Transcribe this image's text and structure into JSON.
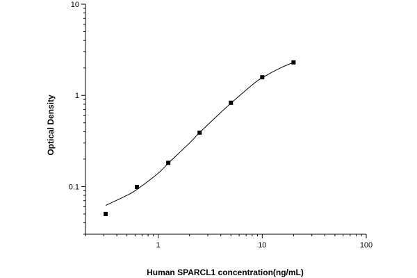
{
  "chart_data": {
    "type": "scatter",
    "xlabel": "Human SPARCL1 concentration(ng/mL)",
    "ylabel": "Optical Density",
    "x_scale": "log",
    "y_scale": "log",
    "xlim": [
      0.2,
      100
    ],
    "ylim": [
      0.03,
      10
    ],
    "x_tick_labels": [
      "1",
      "10",
      "100"
    ],
    "x_tick_values": [
      1,
      10,
      100
    ],
    "y_tick_labels": [
      "0.1",
      "1",
      "10"
    ],
    "y_tick_values": [
      0.1,
      1,
      10
    ],
    "grid": false,
    "legend": "none",
    "marker_color": "#000000",
    "line_color": "#000000",
    "series": [
      {
        "points": [
          {
            "x": 0.3125,
            "y": 0.05
          },
          {
            "x": 0.625,
            "y": 0.099
          },
          {
            "x": 1.25,
            "y": 0.182
          },
          {
            "x": 2.5,
            "y": 0.39
          },
          {
            "x": 5,
            "y": 0.83
          },
          {
            "x": 10,
            "y": 1.58
          },
          {
            "x": 20,
            "y": 2.3
          }
        ]
      }
    ],
    "fit_curve": {
      "type": "smooth",
      "points": [
        {
          "x": 0.3125,
          "y": 0.062
        },
        {
          "x": 0.5,
          "y": 0.08
        },
        {
          "x": 0.625,
          "y": 0.093
        },
        {
          "x": 1,
          "y": 0.14
        },
        {
          "x": 1.25,
          "y": 0.18
        },
        {
          "x": 2,
          "y": 0.3
        },
        {
          "x": 2.5,
          "y": 0.39
        },
        {
          "x": 4,
          "y": 0.65
        },
        {
          "x": 5,
          "y": 0.82
        },
        {
          "x": 8,
          "y": 1.3
        },
        {
          "x": 10,
          "y": 1.56
        },
        {
          "x": 15,
          "y": 2.0
        },
        {
          "x": 20,
          "y": 2.3
        }
      ]
    }
  }
}
